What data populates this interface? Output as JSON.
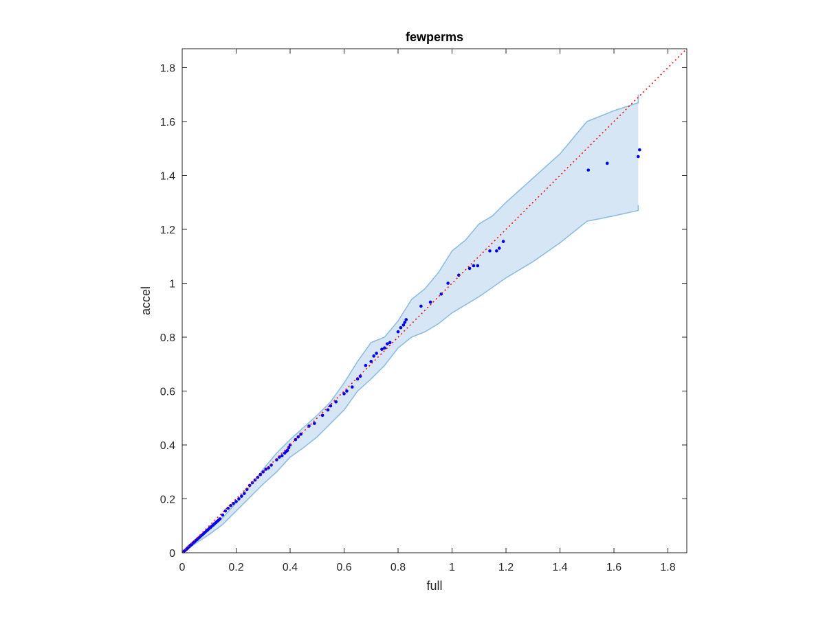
{
  "chart_data": {
    "type": "scatter",
    "title": "fewperms",
    "xlabel": "full",
    "ylabel": "accel",
    "xlim": [
      0,
      1.87
    ],
    "ylim": [
      0,
      1.87
    ],
    "xticks": [
      0,
      0.2,
      0.4,
      0.6,
      0.8,
      1,
      1.2,
      1.4,
      1.6,
      1.8
    ],
    "xtick_labels": [
      "0",
      "0.2",
      "0.4",
      "0.6",
      "0.8",
      "1",
      "1.2",
      "1.4",
      "1.6",
      "1.8"
    ],
    "yticks": [
      0,
      0.2,
      0.4,
      0.6,
      0.8,
      1,
      1.2,
      1.4,
      1.6,
      1.8
    ],
    "ytick_labels": [
      "0",
      "0.2",
      "0.4",
      "0.6",
      "0.8",
      "1",
      "1.2",
      "1.4",
      "1.6",
      "1.8"
    ],
    "grid": false,
    "colors": {
      "points": "#0000ff",
      "reference_line": "#ff0000",
      "band_fill": "#d6e6f4",
      "band_edge": "#8cbede",
      "axes": "#262626"
    },
    "reference_line": {
      "style": "dotted",
      "from": [
        0,
        0
      ],
      "to": [
        1.87,
        1.87
      ]
    },
    "band": {
      "upper": [
        [
          0,
          0
        ],
        [
          0.02,
          0.025
        ],
        [
          0.05,
          0.05
        ],
        [
          0.1,
          0.085
        ],
        [
          0.15,
          0.13
        ],
        [
          0.2,
          0.185
        ],
        [
          0.25,
          0.245
        ],
        [
          0.3,
          0.31
        ],
        [
          0.35,
          0.37
        ],
        [
          0.4,
          0.42
        ],
        [
          0.45,
          0.465
        ],
        [
          0.5,
          0.51
        ],
        [
          0.55,
          0.56
        ],
        [
          0.6,
          0.63
        ],
        [
          0.65,
          0.71
        ],
        [
          0.7,
          0.78
        ],
        [
          0.75,
          0.8
        ],
        [
          0.8,
          0.86
        ],
        [
          0.85,
          0.94
        ],
        [
          0.9,
          0.98
        ],
        [
          0.95,
          1.04
        ],
        [
          1.0,
          1.12
        ],
        [
          1.05,
          1.16
        ],
        [
          1.1,
          1.22
        ],
        [
          1.15,
          1.25
        ],
        [
          1.2,
          1.3
        ],
        [
          1.3,
          1.39
        ],
        [
          1.4,
          1.48
        ],
        [
          1.5,
          1.6
        ],
        [
          1.6,
          1.64
        ],
        [
          1.69,
          1.67
        ],
        [
          1.69,
          1.7
        ]
      ],
      "lower": [
        [
          0,
          0
        ],
        [
          0.02,
          0.012
        ],
        [
          0.05,
          0.035
        ],
        [
          0.1,
          0.068
        ],
        [
          0.15,
          0.105
        ],
        [
          0.2,
          0.155
        ],
        [
          0.25,
          0.205
        ],
        [
          0.3,
          0.255
        ],
        [
          0.35,
          0.3
        ],
        [
          0.4,
          0.355
        ],
        [
          0.45,
          0.39
        ],
        [
          0.5,
          0.43
        ],
        [
          0.55,
          0.48
        ],
        [
          0.6,
          0.53
        ],
        [
          0.65,
          0.6
        ],
        [
          0.7,
          0.645
        ],
        [
          0.75,
          0.695
        ],
        [
          0.8,
          0.76
        ],
        [
          0.85,
          0.8
        ],
        [
          0.9,
          0.82
        ],
        [
          0.95,
          0.85
        ],
        [
          1.0,
          0.89
        ],
        [
          1.1,
          0.95
        ],
        [
          1.2,
          1.02
        ],
        [
          1.3,
          1.08
        ],
        [
          1.4,
          1.15
        ],
        [
          1.5,
          1.23
        ],
        [
          1.6,
          1.25
        ],
        [
          1.69,
          1.27
        ],
        [
          1.69,
          1.29
        ]
      ]
    },
    "points": {
      "x": [
        0.005,
        0.01,
        0.015,
        0.02,
        0.025,
        0.03,
        0.035,
        0.04,
        0.045,
        0.05,
        0.055,
        0.06,
        0.065,
        0.07,
        0.075,
        0.08,
        0.085,
        0.09,
        0.095,
        0.1,
        0.105,
        0.11,
        0.115,
        0.12,
        0.125,
        0.13,
        0.135,
        0.14,
        0.15,
        0.16,
        0.17,
        0.18,
        0.19,
        0.2,
        0.21,
        0.22,
        0.23,
        0.24,
        0.25,
        0.26,
        0.27,
        0.28,
        0.29,
        0.3,
        0.31,
        0.32,
        0.33,
        0.35,
        0.36,
        0.37,
        0.38,
        0.385,
        0.39,
        0.395,
        0.4,
        0.42,
        0.43,
        0.44,
        0.47,
        0.49,
        0.52,
        0.54,
        0.55,
        0.57,
        0.6,
        0.61,
        0.63,
        0.65,
        0.66,
        0.68,
        0.7,
        0.71,
        0.72,
        0.74,
        0.75,
        0.76,
        0.77,
        0.8,
        0.81,
        0.82,
        0.825,
        0.83,
        0.885,
        0.92,
        0.96,
        0.985,
        1.025,
        1.065,
        1.08,
        1.095,
        1.14,
        1.165,
        1.175,
        1.19,
        1.505,
        1.575,
        1.69,
        1.695
      ],
      "y": [
        0.004,
        0.008,
        0.012,
        0.017,
        0.022,
        0.027,
        0.031,
        0.036,
        0.04,
        0.045,
        0.049,
        0.054,
        0.058,
        0.063,
        0.067,
        0.072,
        0.076,
        0.081,
        0.085,
        0.09,
        0.094,
        0.099,
        0.103,
        0.108,
        0.112,
        0.117,
        0.121,
        0.126,
        0.14,
        0.155,
        0.165,
        0.175,
        0.183,
        0.19,
        0.2,
        0.21,
        0.22,
        0.235,
        0.25,
        0.26,
        0.27,
        0.28,
        0.29,
        0.3,
        0.31,
        0.315,
        0.325,
        0.345,
        0.355,
        0.36,
        0.37,
        0.375,
        0.38,
        0.39,
        0.4,
        0.42,
        0.43,
        0.44,
        0.47,
        0.48,
        0.51,
        0.53,
        0.545,
        0.56,
        0.59,
        0.6,
        0.615,
        0.645,
        0.655,
        0.695,
        0.71,
        0.73,
        0.74,
        0.755,
        0.76,
        0.775,
        0.78,
        0.82,
        0.835,
        0.845,
        0.855,
        0.865,
        0.915,
        0.93,
        0.96,
        1.0,
        1.03,
        1.055,
        1.065,
        1.065,
        1.12,
        1.12,
        1.13,
        1.155,
        1.42,
        1.445,
        1.47,
        1.495
      ]
    }
  }
}
